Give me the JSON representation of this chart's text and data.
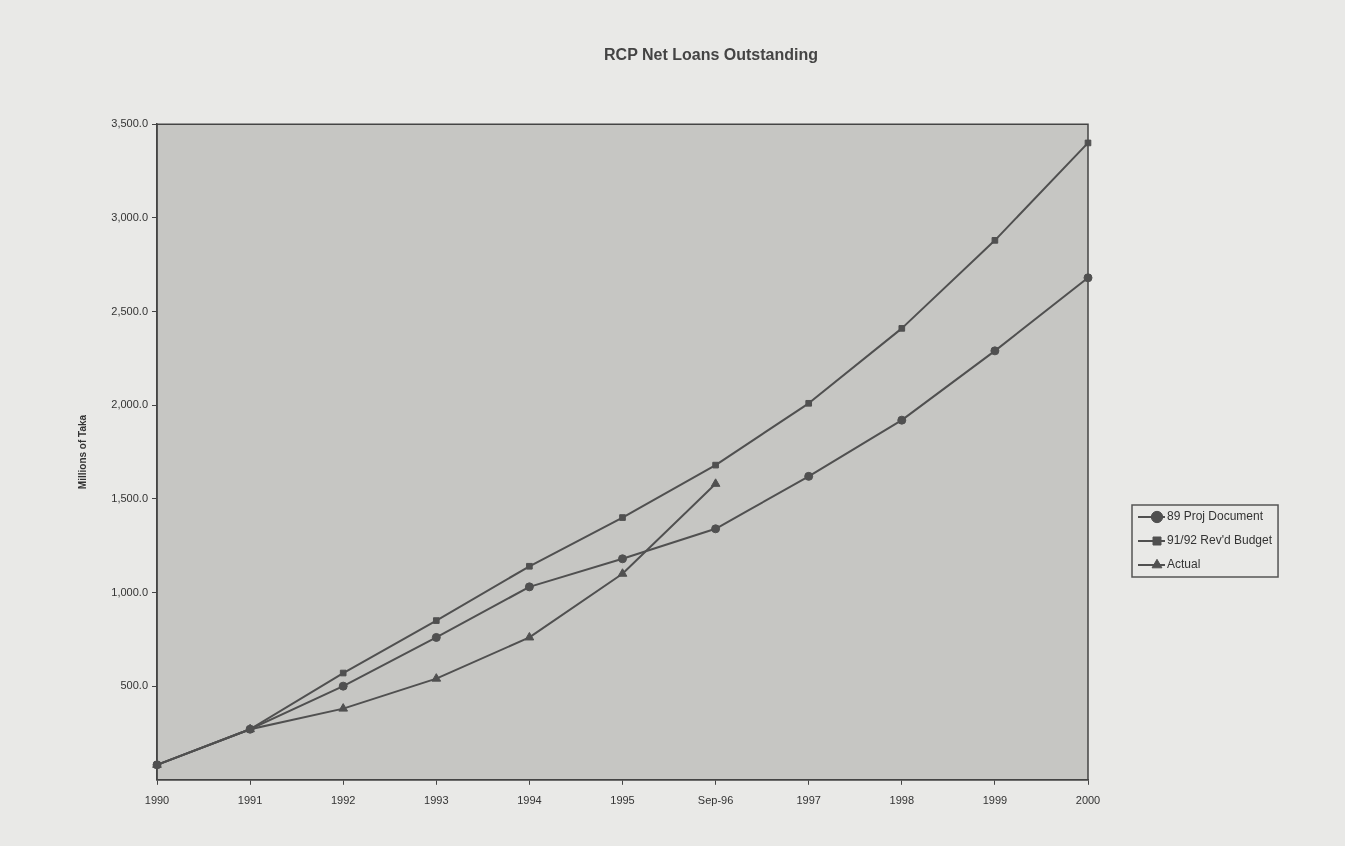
{
  "chart_data": {
    "type": "line",
    "title": "RCP Net Loans Outstanding",
    "ylabel": "Millions of Taka",
    "categories": [
      "1990",
      "1991",
      "1992",
      "1993",
      "1994",
      "1995",
      "Sep-96",
      "1997",
      "1998",
      "1999",
      "2000"
    ],
    "series": [
      {
        "name": "89 Proj Document",
        "color": "#505050",
        "marker": "circle",
        "values": [
          80,
          270,
          500,
          760,
          1030,
          1180,
          1340,
          1620,
          1920,
          2290,
          2680
        ]
      },
      {
        "name": "91/92 Rev'd Budget",
        "color": "#505050",
        "marker": "square",
        "values": [
          80,
          270,
          570,
          850,
          1140,
          1400,
          1680,
          2010,
          2410,
          2880,
          3400
        ]
      },
      {
        "name": "Actual",
        "color": "#505050",
        "marker": "triangle",
        "values": [
          80,
          270,
          380,
          540,
          760,
          1100,
          1580,
          null,
          null,
          null,
          null
        ]
      }
    ],
    "ylim": [
      0,
      3500
    ],
    "yticks": [
      {
        "value": 500,
        "label": "500.0"
      },
      {
        "value": 1000,
        "label": "1,000.0"
      },
      {
        "value": 1500,
        "label": "1,500.0"
      },
      {
        "value": 2000,
        "label": "2,000.0"
      },
      {
        "value": 2500,
        "label": "2,500.0"
      },
      {
        "value": 3000,
        "label": "3,000.0"
      },
      {
        "value": 3500,
        "label": "3,500.0"
      }
    ],
    "grid": false,
    "legend": "right",
    "line_style": "solid"
  }
}
